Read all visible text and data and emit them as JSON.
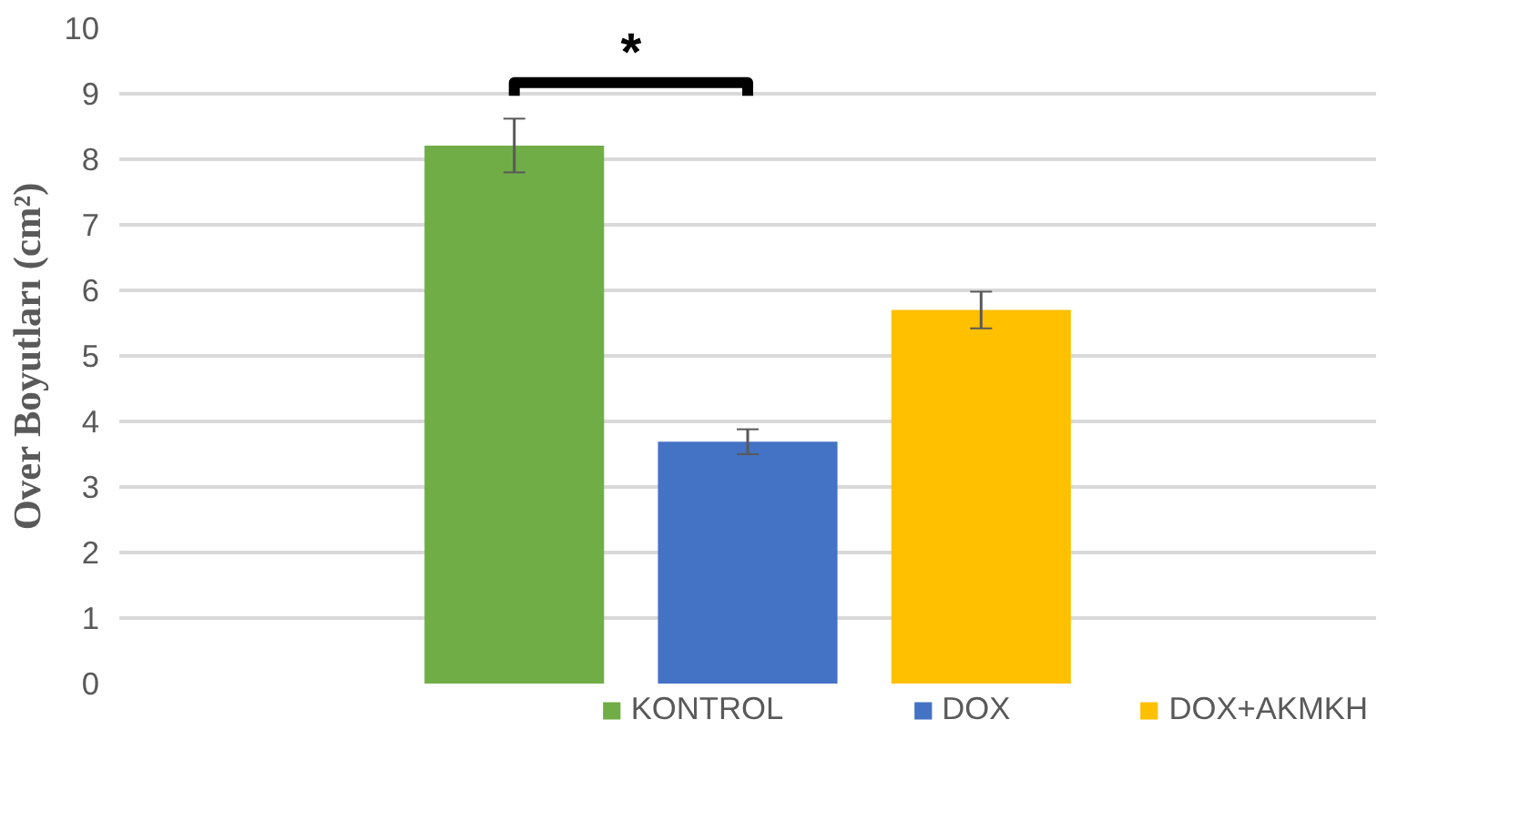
{
  "chart_data": {
    "type": "bar",
    "ylabel": "Over Boyutları (cm²)",
    "categories": [
      null
    ],
    "series": [
      {
        "name": "KONTROL",
        "color": "#70ad47",
        "values": [
          8.21
        ],
        "errors": [
          0.41
        ]
      },
      {
        "name": "DOX",
        "color": "#4472c4",
        "values": [
          3.69
        ],
        "errors": [
          0.19
        ]
      },
      {
        "name": "DOX+AKMKH",
        "color": "#ffc000",
        "values": [
          5.7
        ],
        "errors": [
          0.28
        ]
      }
    ],
    "ylim": [
      0,
      10
    ],
    "yticks": [
      0,
      1,
      2,
      3,
      4,
      5,
      6,
      7,
      8,
      9,
      10
    ],
    "grid": "y",
    "legend": "bottom",
    "annotations": [
      "*"
    ]
  }
}
